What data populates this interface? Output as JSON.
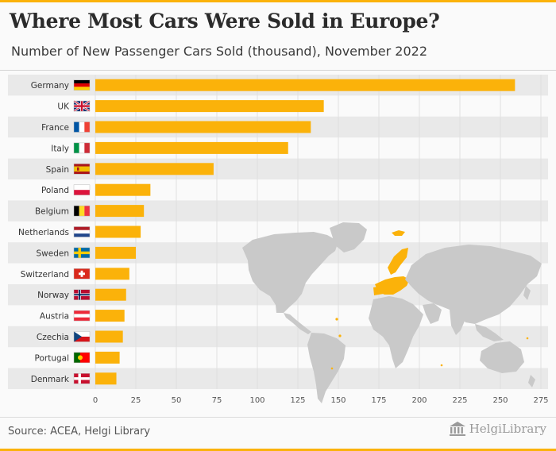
{
  "title": "Where Most Cars Were Sold in Europe?",
  "subtitle": "Number of New Passenger Cars Sold (thousand), November 2022",
  "source": "Source: ACEA, Helgi Library",
  "brand": "HelgiLibrary",
  "colors": {
    "accent": "#fbb20a",
    "bar": "#fbb20a",
    "band": "#e9e9e9",
    "grid": "#e0e0e0",
    "map_land": "#c9c9c9",
    "map_highlight": "#fbb20a"
  },
  "chart_data": {
    "type": "bar",
    "orientation": "horizontal",
    "title": "Where Most Cars Were Sold in Europe?",
    "subtitle": "Number of New Passenger Cars Sold (thousand), November 2022",
    "xlabel": "",
    "ylabel": "",
    "xlim": [
      0,
      275
    ],
    "xticks": [
      0,
      25,
      50,
      75,
      100,
      125,
      150,
      175,
      200,
      225,
      250,
      275
    ],
    "grid": true,
    "categories": [
      "Germany",
      "UK",
      "France",
      "Italy",
      "Spain",
      "Poland",
      "Belgium",
      "Netherlands",
      "Sweden",
      "Switzerland",
      "Norway",
      "Austria",
      "Czechia",
      "Portugal",
      "Denmark"
    ],
    "values": [
      259,
      141,
      133,
      119,
      73,
      34,
      30,
      28,
      25,
      21,
      19,
      18,
      17,
      15,
      13
    ],
    "flags": [
      "flag-de-icon",
      "flag-uk-icon",
      "flag-fr-icon",
      "flag-it-icon",
      "flag-es-icon",
      "flag-pl-icon",
      "flag-be-icon",
      "flag-nl-icon",
      "flag-se-icon",
      "flag-ch-icon",
      "flag-no-icon",
      "flag-at-icon",
      "flag-cz-icon",
      "flag-pt-icon",
      "flag-dk-icon"
    ]
  }
}
